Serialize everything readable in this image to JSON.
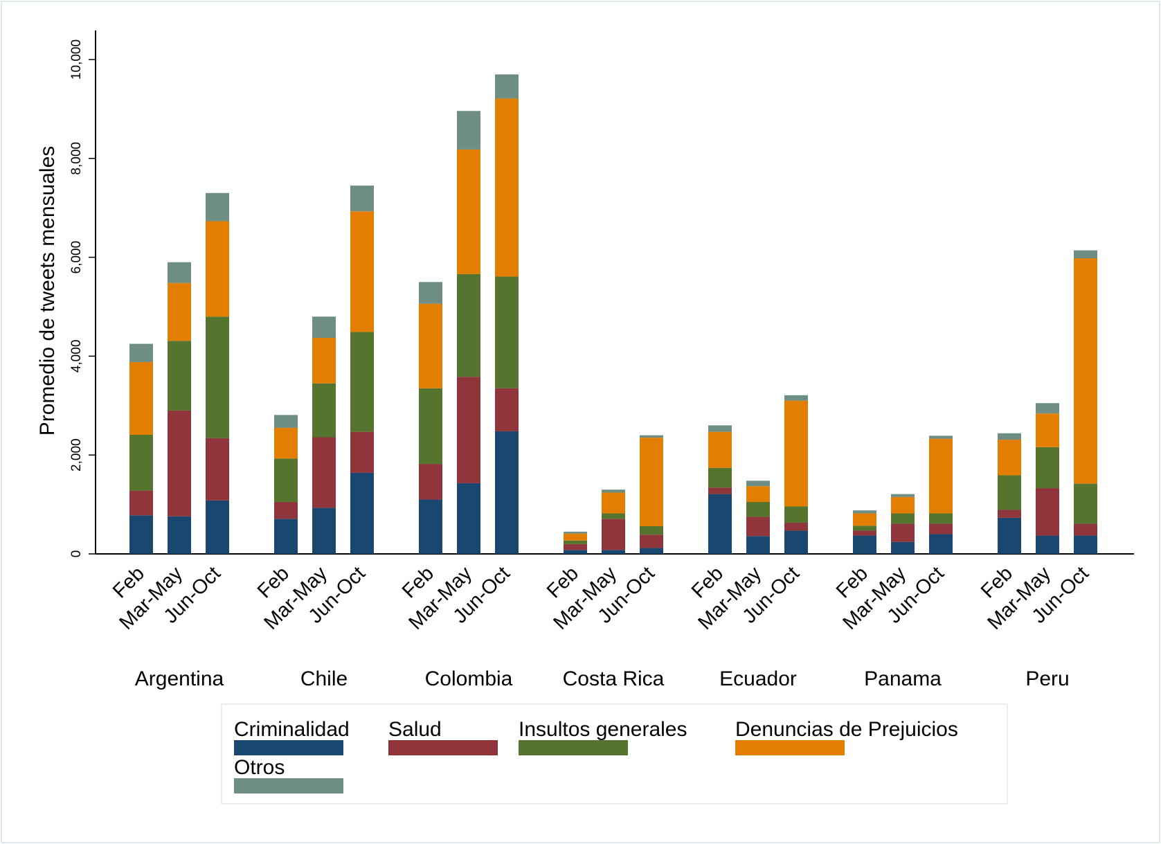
{
  "chart_data": {
    "type": "bar",
    "stacked": true,
    "ylabel": "Promedio de tweets mensuales",
    "ylim": [
      0,
      10000
    ],
    "yticks": [
      0,
      2000,
      4000,
      6000,
      8000,
      10000
    ],
    "ytick_labels": [
      "0",
      "2,000",
      "4,000",
      "6,000",
      "8,000",
      "10,000"
    ],
    "grid": false,
    "legend_position": "bottom",
    "groups": [
      "Argentina",
      "Chile",
      "Colombia",
      "Costa Rica",
      "Ecuador",
      "Panama",
      "Peru"
    ],
    "categories": [
      "Feb",
      "Mar-May",
      "Jun-Oct"
    ],
    "series": [
      {
        "name": "Criminalidad",
        "color": "#1a476f",
        "values": [
          [
            780,
            760,
            1080
          ],
          [
            710,
            930,
            1640
          ],
          [
            1100,
            1430,
            2480
          ],
          [
            80,
            80,
            120
          ],
          [
            1210,
            360,
            470
          ],
          [
            370,
            240,
            400
          ],
          [
            730,
            370,
            370
          ]
        ]
      },
      {
        "name": "Salud",
        "color": "#90353b",
        "values": [
          [
            500,
            2140,
            1260
          ],
          [
            340,
            1430,
            830
          ],
          [
            720,
            2150,
            870
          ],
          [
            120,
            630,
            270
          ],
          [
            130,
            390,
            160
          ],
          [
            100,
            370,
            210
          ],
          [
            160,
            960,
            240
          ]
        ]
      },
      {
        "name": "Insultos generales",
        "color": "#55752f",
        "values": [
          [
            1130,
            1410,
            2460
          ],
          [
            880,
            1090,
            2020
          ],
          [
            1530,
            2080,
            2260
          ],
          [
            70,
            110,
            170
          ],
          [
            400,
            300,
            330
          ],
          [
            100,
            210,
            210
          ],
          [
            700,
            830,
            810
          ]
        ]
      },
      {
        "name": "Denuncias de Prejuicios",
        "color": "#e37e00",
        "values": [
          [
            1470,
            1170,
            1930
          ],
          [
            620,
            920,
            2440
          ],
          [
            1710,
            2520,
            3600
          ],
          [
            140,
            420,
            1790
          ],
          [
            730,
            320,
            2140
          ],
          [
            250,
            330,
            1510
          ],
          [
            720,
            680,
            4560
          ]
        ]
      },
      {
        "name": "Otros",
        "color": "#6e8e84",
        "values": [
          [
            370,
            420,
            570
          ],
          [
            260,
            430,
            520
          ],
          [
            440,
            780,
            490
          ],
          [
            40,
            60,
            50
          ],
          [
            130,
            110,
            110
          ],
          [
            60,
            60,
            60
          ],
          [
            130,
            210,
            160
          ]
        ]
      }
    ]
  }
}
